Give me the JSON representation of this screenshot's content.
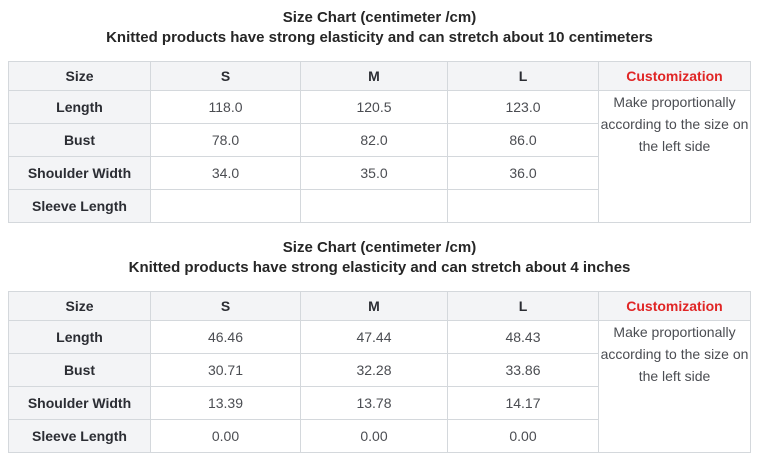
{
  "colors": {
    "customization_red": "#e02525",
    "header_bg": "#f3f4f6",
    "border": "#d4d8dc",
    "title_text": "#262626",
    "value_text": "#4b4d52"
  },
  "tables": [
    {
      "title": "Size Chart  (centimeter /cm)",
      "subtitle": "Knitted products have strong elasticity and can stretch about 10 centimeters",
      "columns": [
        "Size",
        "S",
        "M",
        "L",
        "Customization"
      ],
      "rows": [
        {
          "label": "Length",
          "values": [
            "118.0",
            "120.5",
            "123.0"
          ]
        },
        {
          "label": "Bust",
          "values": [
            "78.0",
            "82.0",
            "86.0"
          ]
        },
        {
          "label": "Shoulder Width",
          "values": [
            "34.0",
            "35.0",
            "36.0"
          ]
        },
        {
          "label": "Sleeve Length",
          "values": [
            "",
            "",
            ""
          ]
        }
      ],
      "customization_note": "Make proportionally according to the size on the left side"
    },
    {
      "title": "Size Chart  (centimeter /cm)",
      "subtitle": "Knitted products have strong elasticity and can stretch about 4 inches",
      "columns": [
        "Size",
        "S",
        "M",
        "L",
        "Customization"
      ],
      "rows": [
        {
          "label": "Length",
          "values": [
            "46.46",
            "47.44",
            "48.43"
          ]
        },
        {
          "label": "Bust",
          "values": [
            "30.71",
            "32.28",
            "33.86"
          ]
        },
        {
          "label": "Shoulder Width",
          "values": [
            "13.39",
            "13.78",
            "14.17"
          ]
        },
        {
          "label": "Sleeve Length",
          "values": [
            "0.00",
            "0.00",
            "0.00"
          ]
        }
      ],
      "customization_note": "Make proportionally according to the size on the left side"
    }
  ]
}
